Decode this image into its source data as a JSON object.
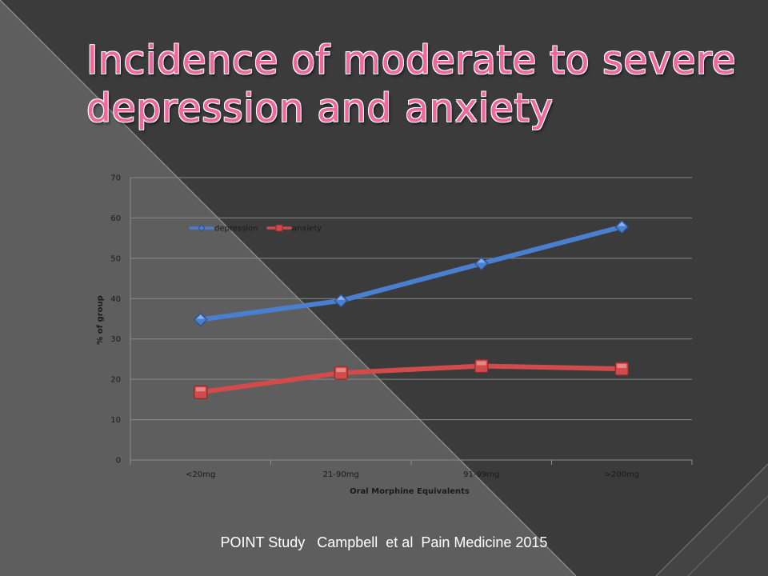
{
  "slide": {
    "title": "Incidence of moderate to severe depression and anxiety",
    "citation": "POINT Study   Campbell  et al  Pain Medicine 2015"
  },
  "chart_data": {
    "type": "line",
    "categories": [
      "<20mg",
      "21-90mg",
      "91-99mg",
      ">200mg"
    ],
    "series": [
      {
        "name": "depression",
        "values": [
          34.8,
          39.5,
          48.7,
          57.8
        ],
        "color": "#4a7fd0",
        "marker": "diamond"
      },
      {
        "name": "anxiety",
        "values": [
          16.8,
          21.6,
          23.3,
          22.6
        ],
        "color": "#d24b4b",
        "marker": "square"
      }
    ],
    "xlabel": "Oral Morphine Equivalents",
    "ylabel": "% of group",
    "ylim": [
      0,
      70
    ],
    "yticks": [
      0,
      10,
      20,
      30,
      40,
      50,
      60,
      70
    ],
    "grid": true,
    "legend": "top-left"
  }
}
